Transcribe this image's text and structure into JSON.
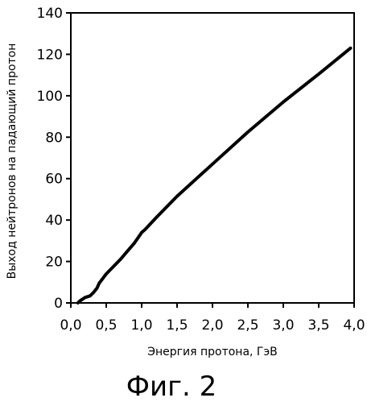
{
  "chart_data": {
    "type": "line",
    "title": "",
    "xlabel": "Энергия протона, ГэВ",
    "ylabel": "Выход нейтронов на падающий протон",
    "xlim": [
      0,
      4.0
    ],
    "ylim": [
      0,
      140
    ],
    "x_ticks": [
      0.0,
      0.5,
      1.0,
      1.5,
      2.0,
      2.5,
      3.0,
      3.5,
      4.0
    ],
    "x_tick_labels": [
      "0,0",
      "0,5",
      "1,0",
      "1,5",
      "2,0",
      "2,5",
      "3,0",
      "3,5",
      "4,0"
    ],
    "y_ticks": [
      0,
      20,
      40,
      60,
      80,
      100,
      120,
      140
    ],
    "y_tick_labels": [
      "0",
      "20",
      "40",
      "60",
      "80",
      "100",
      "120",
      "140"
    ],
    "grid": false,
    "legend": "none",
    "line_color": "#000000",
    "series": [
      {
        "x": [
          0.1,
          0.13,
          0.2,
          0.27,
          0.32,
          0.37,
          0.4,
          0.5,
          0.6,
          0.7,
          0.8,
          0.9,
          0.96,
          1.0,
          1.05,
          1.2,
          1.5,
          2.0,
          2.5,
          3.0,
          3.5,
          3.95
        ],
        "y": [
          0,
          1,
          2.6,
          3.4,
          5,
          7.2,
          9.5,
          14,
          17.5,
          21,
          25,
          29,
          32,
          34,
          35.5,
          41,
          51.5,
          67,
          82.5,
          97,
          110.5,
          123
        ]
      }
    ]
  },
  "caption": "Фиг. 2"
}
